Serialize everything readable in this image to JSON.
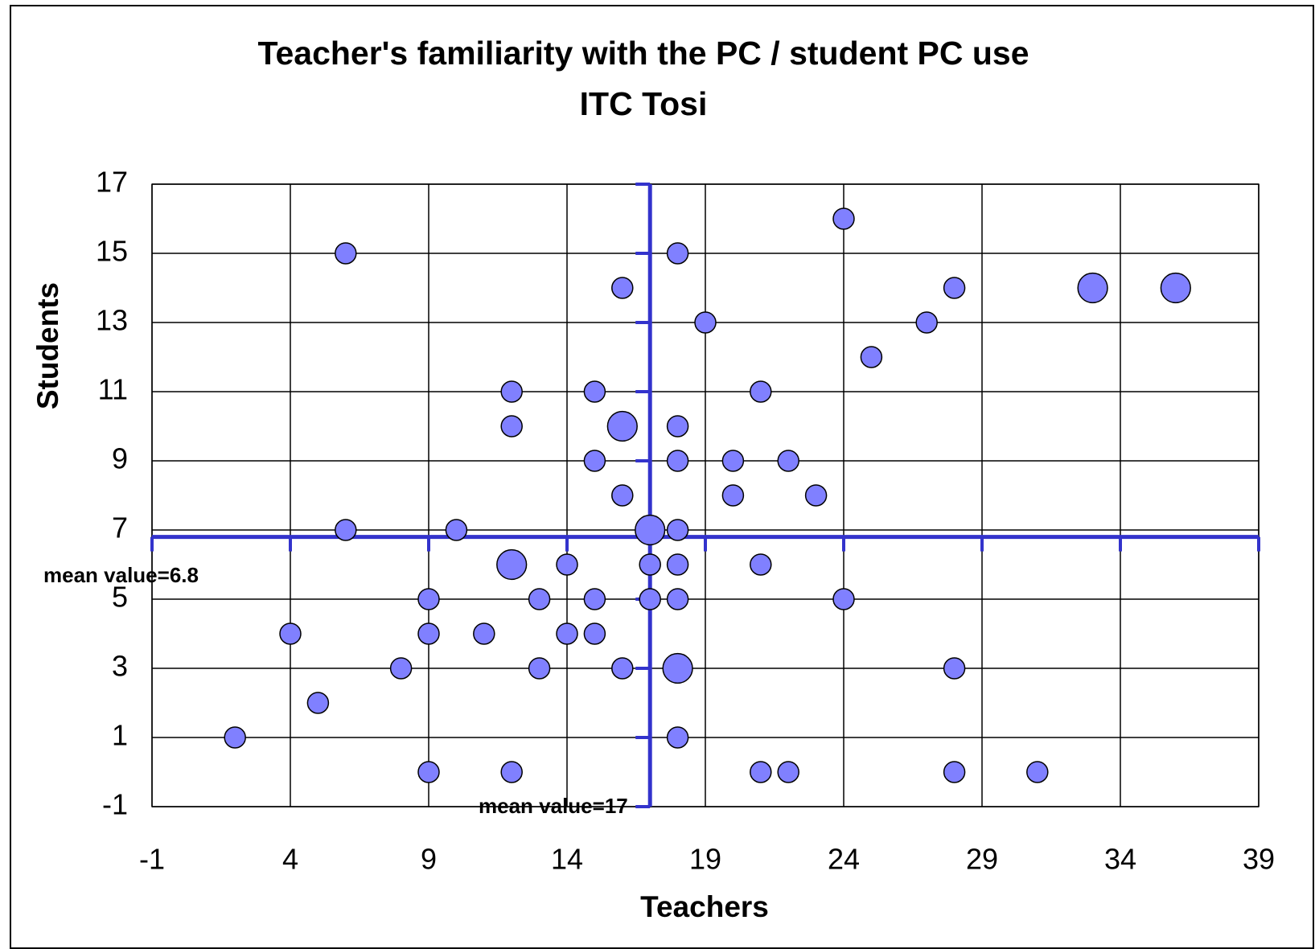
{
  "chart_data": {
    "type": "bubble",
    "title": "Teacher's familiarity with the PC / student PC use",
    "subtitle": "ITC Tosi",
    "x_label": "Teachers",
    "y_label": "Students",
    "x": [
      24,
      6,
      18,
      16,
      28,
      33,
      36,
      19,
      27,
      25,
      12,
      15,
      21,
      12,
      16,
      18,
      15,
      18,
      20,
      22,
      16,
      20,
      23,
      6,
      10,
      17,
      18,
      12,
      14,
      17,
      18,
      21,
      9,
      13,
      15,
      17,
      18,
      24,
      4,
      9,
      11,
      14,
      15,
      8,
      13,
      16,
      18,
      28,
      5,
      2,
      18,
      9,
      12,
      21,
      22,
      28,
      31
    ],
    "values": [
      16,
      15,
      15,
      14,
      14,
      14,
      14,
      13,
      13,
      12,
      11,
      11,
      11,
      10,
      10,
      10,
      9,
      9,
      9,
      9,
      8,
      8,
      8,
      7,
      7,
      7,
      7,
      6,
      6,
      6,
      6,
      6,
      5,
      5,
      5,
      5,
      5,
      5,
      4,
      4,
      4,
      4,
      4,
      3,
      3,
      3,
      3,
      3,
      2,
      1,
      1,
      0,
      0,
      0,
      0,
      0,
      0
    ],
    "sizes": [
      1,
      1,
      1,
      1,
      1,
      2,
      2,
      1,
      1,
      1,
      1,
      1,
      1,
      1,
      2,
      1,
      1,
      1,
      1,
      1,
      1,
      1,
      1,
      1,
      1,
      2,
      1,
      2,
      1,
      1,
      1,
      1,
      1,
      1,
      1,
      1,
      1,
      1,
      1,
      1,
      1,
      1,
      1,
      1,
      1,
      1,
      2,
      1,
      1,
      1,
      1,
      1,
      1,
      1,
      1,
      1,
      1
    ],
    "color": "#8080ff",
    "mean_x": 17,
    "mean_y": 6.8,
    "mean_color": "#3333cc",
    "annotations": [
      "mean value=6.8",
      "mean value=17"
    ],
    "xlim": [
      -1,
      39
    ],
    "xticks": [
      -1,
      4,
      9,
      14,
      19,
      24,
      29,
      34,
      39
    ],
    "ylim": [
      -1,
      17
    ],
    "yticks": [
      -1,
      1,
      3,
      5,
      7,
      9,
      11,
      13,
      15,
      17
    ],
    "grid": true
  }
}
